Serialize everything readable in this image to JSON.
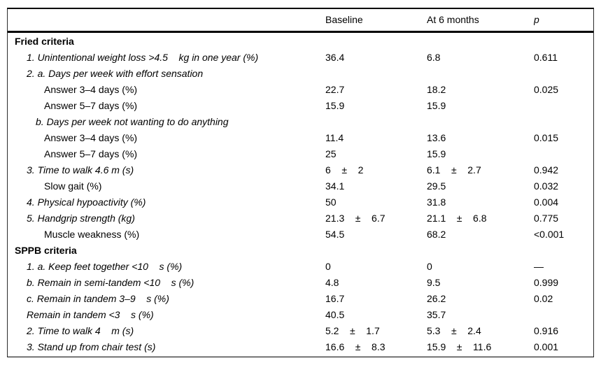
{
  "table": {
    "header": {
      "label": "",
      "baseline": "Baseline",
      "months": "At 6 months",
      "p": "p"
    },
    "sections": [
      {
        "title": "Fried criteria",
        "rows": [
          {
            "label": "1. Unintentional weight loss >4.5    kg in one year (%)",
            "baseline": "36.4",
            "months": "6.8",
            "p": "0.611"
          },
          {
            "label": "2. a. Days per week with effort sensation",
            "baseline": "",
            "months": "",
            "p": ""
          },
          {
            "label": "Answer 3–4 days (%)",
            "baseline": "22.7",
            "months": "18.2",
            "p": "0.025"
          },
          {
            "label": "Answer 5–7 days (%)",
            "baseline": "15.9",
            "months": "15.9",
            "p": ""
          },
          {
            "label": "b. Days per week not wanting to do anything",
            "baseline": "",
            "months": "",
            "p": ""
          },
          {
            "label": "Answer 3–4 days (%)",
            "baseline": "11.4",
            "months": "13.6",
            "p": "0.015"
          },
          {
            "label": "Answer 5–7 days (%)",
            "baseline": "25",
            "months": "15.9",
            "p": ""
          },
          {
            "label": "3. Time to walk 4.6 m (s)",
            "baseline": "6    ±    2",
            "months": "6.1    ±    2.7",
            "p": "0.942"
          },
          {
            "label": "Slow gait (%)",
            "baseline": "34.1",
            "months": "29.5",
            "p": "0.032"
          },
          {
            "label": "4. Physical hypoactivity (%)",
            "baseline": "50",
            "months": "31.8",
            "p": "0.004"
          },
          {
            "label": "5. Handgrip strength (kg)",
            "baseline": "21.3    ±    6.7",
            "months": "21.1    ±    6.8",
            "p": "0.775"
          },
          {
            "label": "Muscle weakness (%)",
            "baseline": "54.5",
            "months": "68.2",
            "p": "<0.001"
          }
        ]
      },
      {
        "title": "SPPB criteria",
        "rows": [
          {
            "label": "1. a. Keep feet together <10    s (%)",
            "baseline": "0",
            "months": "0",
            "p": "—"
          },
          {
            "label": "b. Remain in semi-tandem <10    s (%)",
            "baseline": "4.8",
            "months": "9.5",
            "p": "0.999"
          },
          {
            "label": "c. Remain in tandem 3–9    s (%)",
            "baseline": "16.7",
            "months": "26.2",
            "p": "0.02"
          },
          {
            "label": "Remain in tandem <3    s (%)",
            "baseline": "40.5",
            "months": "35.7",
            "p": ""
          },
          {
            "label": "2. Time to walk 4    m (s)",
            "baseline": "5.2    ±    1.7",
            "months": "5.3    ±    2.4",
            "p": "0.916"
          },
          {
            "label": "3. Stand up from chair test (s)",
            "baseline": "16.6    ±    8.3",
            "months": "15.9    ±    11.6",
            "p": "0.001"
          }
        ]
      }
    ]
  }
}
